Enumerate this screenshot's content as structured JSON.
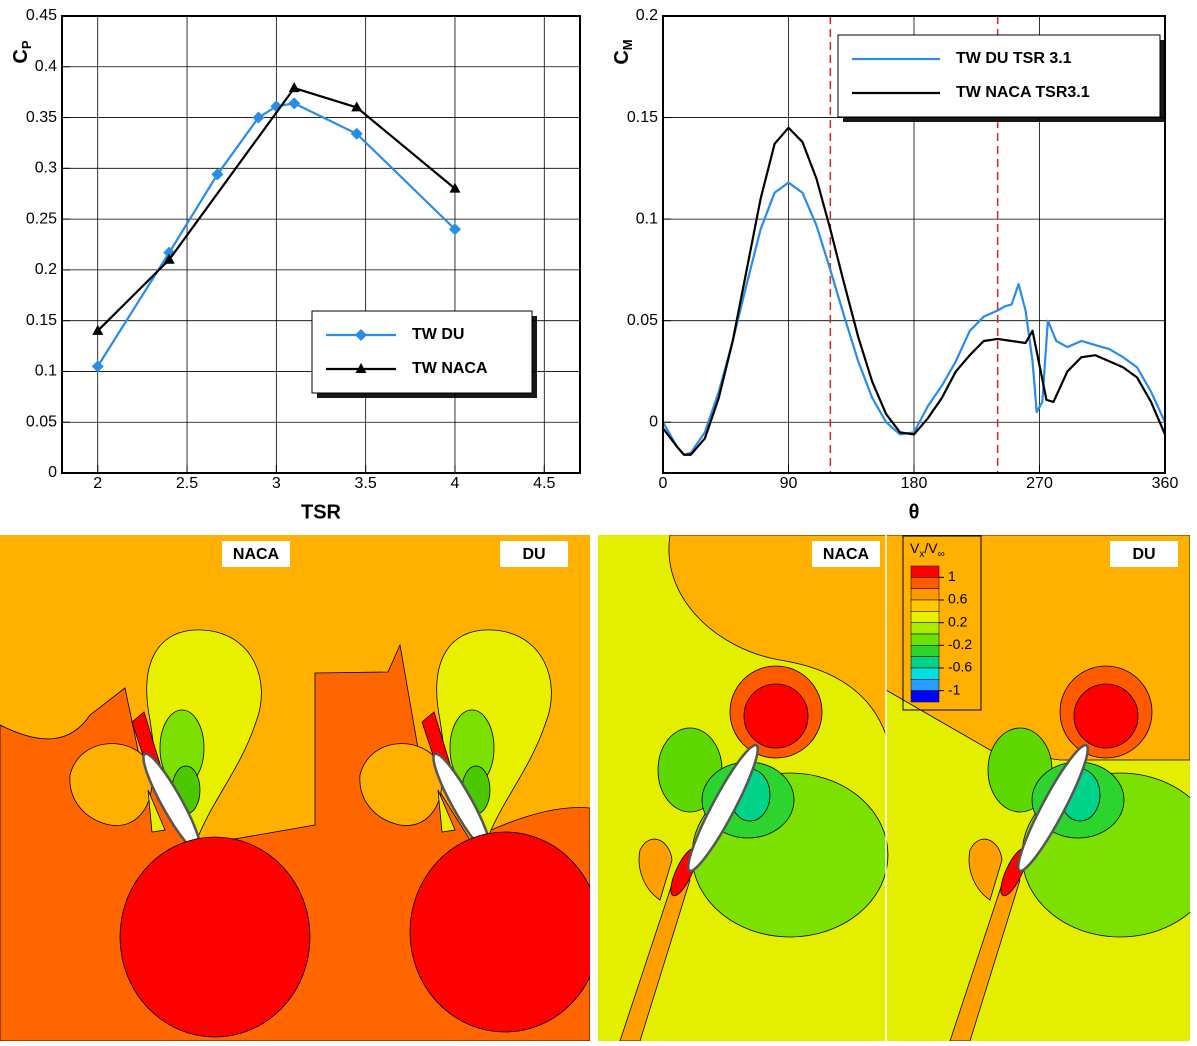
{
  "chart_data": [
    {
      "type": "line",
      "xlabel": "TSR",
      "ylabel_symbol": "C",
      "ylabel_subscript": "P",
      "xlim": [
        1.8,
        4.7
      ],
      "ylim": [
        0,
        0.45
      ],
      "xticks": [
        2,
        2.5,
        3,
        3.5,
        4,
        4.5
      ],
      "yticks": [
        0,
        0.05,
        0.1,
        0.15,
        0.2,
        0.25,
        0.3,
        0.35,
        0.4,
        0.45
      ],
      "grid": true,
      "legend": "lower right",
      "series": [
        {
          "name": "TW DU",
          "color": "#2a8ce6",
          "marker": "diamond",
          "x": [
            2,
            2.4,
            2.67,
            2.9,
            3,
            3.1,
            3.45,
            4
          ],
          "values": [
            0.105,
            0.217,
            0.294,
            0.35,
            0.361,
            0.364,
            0.334,
            0.24
          ]
        },
        {
          "name": "TW NACA",
          "color": "#000000",
          "marker": "triangle",
          "x": [
            2,
            2.4,
            3.1,
            3.45,
            4
          ],
          "values": [
            0.14,
            0.21,
            0.379,
            0.36,
            0.28
          ]
        }
      ]
    },
    {
      "type": "line",
      "xlabel": "θ",
      "ylabel_symbol": "C",
      "ylabel_subscript": "M",
      "xlim": [
        0,
        360
      ],
      "ylim": [
        -0.025,
        0.2
      ],
      "xticks": [
        0,
        90,
        180,
        270,
        360
      ],
      "yticks": [
        0,
        0.05,
        0.1,
        0.15,
        0.2
      ],
      "grid": true,
      "legend": "upper right",
      "vlines": [
        120,
        240
      ],
      "vline_color": "#d62728",
      "series": [
        {
          "name": "TW DU TSR 3.1",
          "color": "#2a8ce6",
          "marker": "none",
          "x": [
            0,
            10,
            15,
            20,
            30,
            40,
            50,
            60,
            70,
            80,
            90,
            100,
            110,
            120,
            130,
            140,
            150,
            160,
            170,
            180,
            190,
            200,
            210,
            220,
            230,
            240,
            245,
            250,
            255,
            260,
            265,
            268,
            272,
            276,
            282,
            290,
            300,
            310,
            320,
            330,
            340,
            350,
            360
          ],
          "values": [
            0,
            -0.012,
            -0.016,
            -0.015,
            -0.005,
            0.015,
            0.04,
            0.068,
            0.095,
            0.113,
            0.118,
            0.113,
            0.097,
            0.075,
            0.052,
            0.03,
            0.012,
            0,
            -0.006,
            -0.005,
            0.008,
            0.018,
            0.03,
            0.045,
            0.052,
            0.055,
            0.057,
            0.058,
            0.068,
            0.055,
            0.03,
            0.005,
            0.01,
            0.05,
            0.04,
            0.037,
            0.04,
            0.038,
            0.036,
            0.032,
            0.027,
            0.015,
            0
          ]
        },
        {
          "name": "TW NACA TSR3.1",
          "color": "#000000",
          "marker": "none",
          "x": [
            0,
            10,
            15,
            20,
            30,
            40,
            50,
            60,
            70,
            80,
            90,
            100,
            110,
            120,
            130,
            140,
            150,
            160,
            170,
            180,
            190,
            200,
            210,
            220,
            230,
            240,
            250,
            260,
            265,
            270,
            275,
            280,
            290,
            300,
            310,
            320,
            330,
            340,
            350,
            360
          ],
          "values": [
            -0.003,
            -0.012,
            -0.016,
            -0.016,
            -0.008,
            0.012,
            0.04,
            0.075,
            0.11,
            0.137,
            0.145,
            0.138,
            0.12,
            0.095,
            0.068,
            0.042,
            0.02,
            0.004,
            -0.005,
            -0.006,
            0.002,
            0.012,
            0.025,
            0.033,
            0.04,
            0.041,
            0.04,
            0.039,
            0.045,
            0.028,
            0.011,
            0.01,
            0.025,
            0.032,
            0.033,
            0.03,
            0.027,
            0.022,
            0.01,
            -0.006
          ]
        }
      ]
    }
  ],
  "panels": [
    {
      "labels": [
        "NACA",
        "DU"
      ]
    },
    {
      "labels": [
        "NACA",
        "DU"
      ]
    }
  ],
  "colorbar": {
    "title_parts": [
      "V",
      "x",
      "/V",
      "∞"
    ],
    "lim": [
      -1.2,
      1.2
    ],
    "ticks": [
      1,
      0.6,
      0.2,
      -0.2,
      -0.6,
      -1
    ],
    "colors": [
      "#ff0000",
      "#ff5a00",
      "#ff9800",
      "#ffc800",
      "#e8f000",
      "#a8ec00",
      "#6ce000",
      "#2ed42e",
      "#00d48a",
      "#00e0e0",
      "#2a9cff",
      "#0000ff"
    ]
  }
}
